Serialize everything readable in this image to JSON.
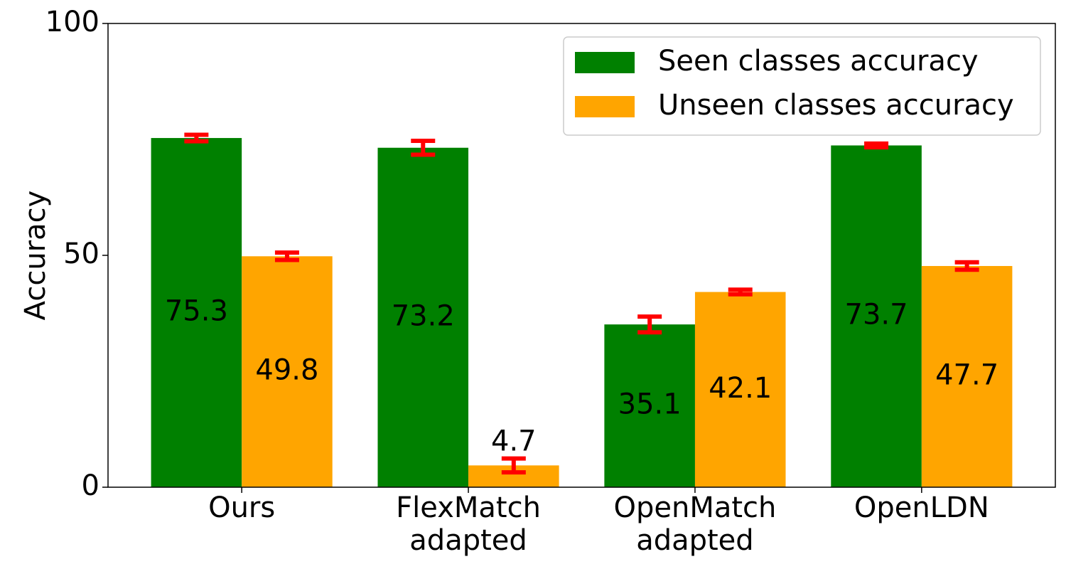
{
  "chart_data": {
    "type": "bar",
    "ylabel": "Accuracy",
    "categories": [
      "Ours",
      "FlexMatch\nadapted",
      "OpenMatch\nadapted",
      "OpenLDN"
    ],
    "ylim": [
      0,
      100
    ],
    "yticks": [
      0,
      50,
      100
    ],
    "legend": "upper right",
    "error_color": "red",
    "series": [
      {
        "name": "Seen classes accuracy",
        "color": "green",
        "values": [
          75.3,
          73.2,
          35.1,
          73.7
        ],
        "errors": [
          0.7,
          1.5,
          1.7,
          0.4
        ]
      },
      {
        "name": "Unseen classes accuracy",
        "color": "orange",
        "values": [
          49.8,
          4.7,
          42.1,
          47.7
        ],
        "errors": [
          0.8,
          1.5,
          0.5,
          0.8
        ]
      }
    ]
  }
}
